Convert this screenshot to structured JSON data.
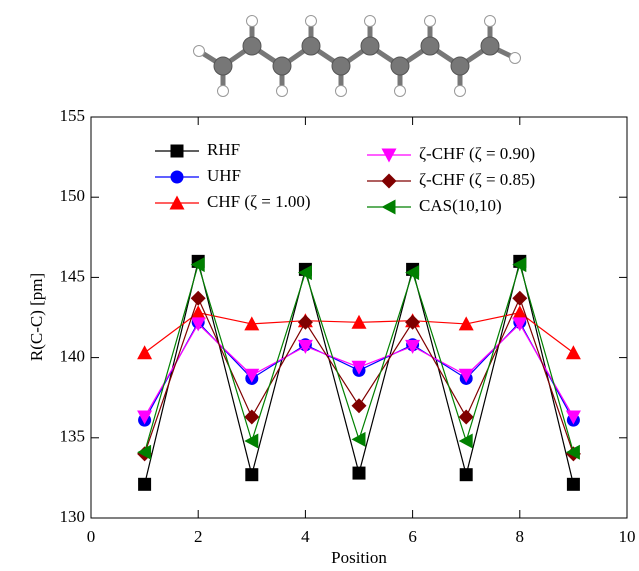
{
  "chart_data": {
    "type": "line",
    "x_label": "Position",
    "y_label": "R(C-C) [pm]",
    "x": [
      1,
      2,
      3,
      4,
      5,
      6,
      7,
      8,
      9
    ],
    "xlim": [
      0,
      10
    ],
    "xticks": [
      0,
      2,
      4,
      6,
      8,
      10
    ],
    "ylim": [
      130,
      155
    ],
    "yticks": [
      130,
      135,
      140,
      145,
      150,
      155
    ],
    "series": [
      {
        "name": "RHF",
        "color": "#000000",
        "marker": "square",
        "values": [
          132.1,
          146.0,
          132.7,
          145.5,
          132.8,
          145.5,
          132.7,
          146.0,
          132.1
        ]
      },
      {
        "name": "UHF",
        "color": "#0000ff",
        "marker": "circle",
        "values": [
          136.1,
          142.2,
          138.7,
          140.8,
          139.2,
          140.8,
          138.7,
          142.2,
          136.1
        ]
      },
      {
        "name": "CHF (ζ = 1.00)",
        "color": "#ff0000",
        "marker": "triangle-up",
        "values": [
          140.3,
          142.8,
          142.1,
          142.3,
          142.2,
          142.3,
          142.1,
          142.8,
          140.3
        ]
      },
      {
        "name": "ζ-CHF (ζ = 0.90)",
        "color": "#ff00ff",
        "marker": "triangle-down",
        "values": [
          136.3,
          142.1,
          138.9,
          140.7,
          139.4,
          140.7,
          138.9,
          142.1,
          136.3
        ]
      },
      {
        "name": "ζ-CHF (ζ = 0.85)",
        "color": "#800000",
        "marker": "diamond",
        "values": [
          134.0,
          143.7,
          136.3,
          142.2,
          137.0,
          142.2,
          136.3,
          143.7,
          134.0
        ]
      },
      {
        "name": "CAS(10,10)",
        "color": "#008000",
        "marker": "triangle-left",
        "values": [
          134.1,
          145.8,
          134.8,
          145.3,
          134.9,
          145.3,
          134.8,
          145.8,
          134.1
        ]
      }
    ]
  }
}
